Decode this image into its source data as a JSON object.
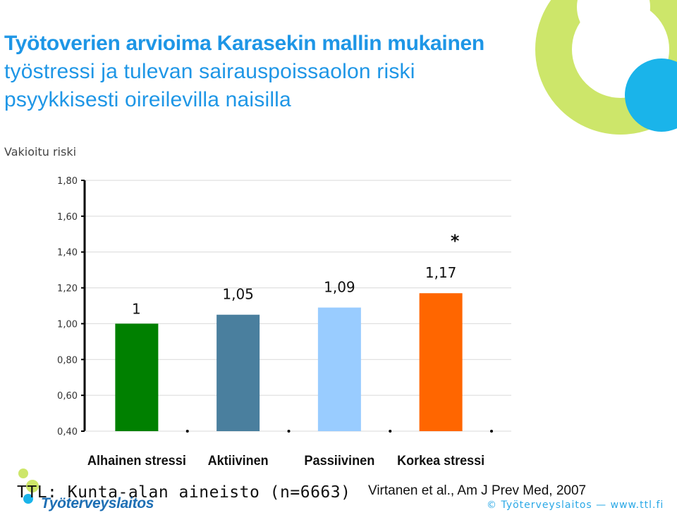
{
  "title": {
    "line1": "Työtoverien arvioima Karasekin mallin mukainen",
    "line2": "työstressi ja tulevan sairauspoissaolon riski",
    "line3": "psyykkisesti oireilevilla naisilla"
  },
  "chart_data": {
    "type": "bar",
    "ylabel": "Vakioitu riski",
    "categories": [
      "Alhainen stressi",
      "Aktiivinen",
      "Passiivinen",
      "Korkea stressi"
    ],
    "values": [
      1,
      1.05,
      1.09,
      1.17
    ],
    "data_labels": [
      "1",
      "1,05",
      "1,09",
      "1,17"
    ],
    "annotations": [
      "",
      "",
      "",
      "*"
    ],
    "colors": [
      "#008000",
      "#4a7f9e",
      "#99ccff",
      "#ff6600"
    ],
    "ylim": [
      0.4,
      1.8
    ],
    "yticks": [
      1.8,
      1.6,
      1.4,
      1.2,
      1.0,
      0.8,
      0.6,
      0.4
    ],
    "ytick_labels": [
      "1,80",
      "1,60",
      "1,40",
      "1,20",
      "1,00",
      "0,80",
      "0,60",
      "0,40"
    ],
    "grid": true
  },
  "source_left": "TTL: Kunta-alan aineisto (n=6663)",
  "logo_text": "Työterveyslaitos",
  "citation": "Virtanen et al., Am J Prev Med, 2007",
  "footer": "© Työterveyslaitos — www.ttl.fi",
  "colors": {
    "title": "#1e96e6",
    "deco_green": "#cde66a",
    "deco_blue": "#1ab4ea",
    "logo_blue": "#1e6fb4"
  }
}
